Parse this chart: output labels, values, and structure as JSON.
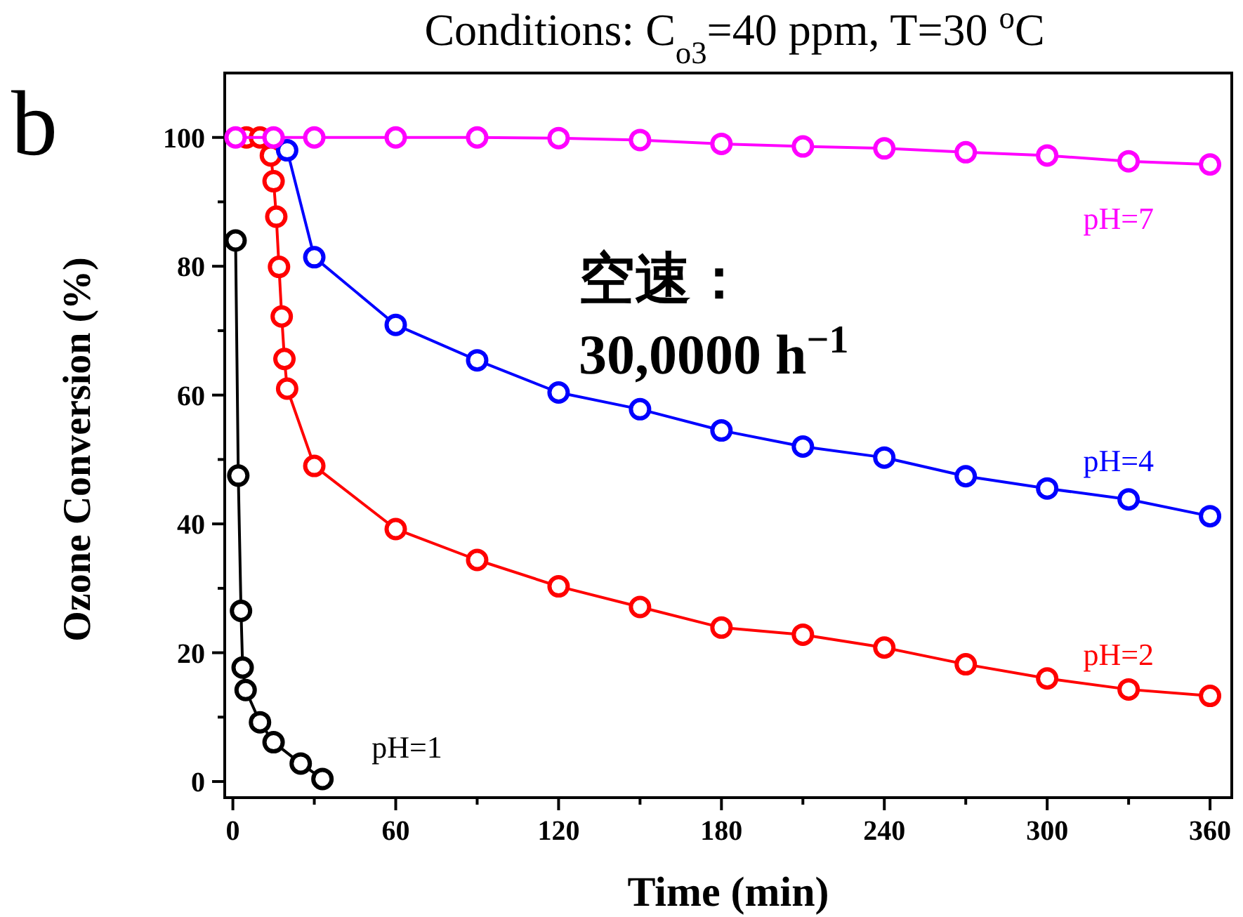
{
  "chart_data": {
    "type": "line",
    "title": "Conditions: C$_{o3}$=40 ppm, T=30 $^{o}$C",
    "xlabel": "Time (min)",
    "ylabel": "Ozone Conversion (%)",
    "xlim": [
      -3,
      368
    ],
    "ylim": [
      -2.5,
      110
    ],
    "xticks": [
      0,
      {
        "value": 30,
        "label": null
      },
      60,
      {
        "value": 90,
        "label": null
      },
      120,
      {
        "value": 150,
        "label": null
      },
      180,
      {
        "value": 210,
        "label": null
      },
      240,
      {
        "value": 270,
        "label": null
      },
      300,
      {
        "value": 330,
        "label": null
      },
      360
    ],
    "yticks": [
      0,
      {
        "value": 10,
        "label": null
      },
      20,
      {
        "value": 30,
        "label": null
      },
      40,
      {
        "value": 50,
        "label": null
      },
      60,
      {
        "value": 70,
        "label": null
      },
      80,
      {
        "value": 90,
        "label": null
      },
      100
    ],
    "marker": "circle",
    "line_style": "solid",
    "annotations": [
      "b",
      "空速：",
      "30,0000 h$^{−1}$"
    ],
    "series": [
      {
        "name": "pH=1",
        "color": "#000000",
        "x": [
          1,
          2,
          3,
          3.6,
          4.7,
          10,
          15,
          25,
          33
        ],
        "values": [
          84,
          47.5,
          26.5,
          17.7,
          14.2,
          9.2,
          6.1,
          2.8,
          0.4
        ]
      },
      {
        "name": "pH=2",
        "color": "#ff0000",
        "x": [
          5,
          10,
          14,
          15,
          16,
          17,
          18,
          19,
          20,
          30,
          60,
          90,
          120,
          150,
          180,
          210,
          240,
          270,
          300,
          330,
          360
        ],
        "values": [
          100,
          100,
          97.2,
          93.2,
          87.7,
          79.9,
          72.2,
          65.6,
          61,
          49,
          39.2,
          34.4,
          30.3,
          27.1,
          23.9,
          22.8,
          20.8,
          18.2,
          16,
          14.3,
          13.3
        ]
      },
      {
        "name": "pH=4",
        "color": "#0000ff",
        "x": [
          20,
          30,
          60,
          90,
          120,
          150,
          180,
          210,
          240,
          270,
          300,
          330,
          360
        ],
        "values": [
          98,
          81.4,
          70.9,
          65.4,
          60.4,
          57.8,
          54.5,
          52,
          50.3,
          47.4,
          45.5,
          43.8,
          41.2
        ]
      },
      {
        "name": "pH=7",
        "color": "#ff00ff",
        "x": [
          1,
          15,
          30,
          60,
          90,
          120,
          150,
          180,
          210,
          240,
          270,
          300,
          330,
          360
        ],
        "values": [
          100,
          100,
          100,
          100,
          100,
          99.9,
          99.6,
          99,
          98.6,
          98.3,
          97.7,
          97.2,
          96.3,
          95.8
        ]
      }
    ]
  }
}
